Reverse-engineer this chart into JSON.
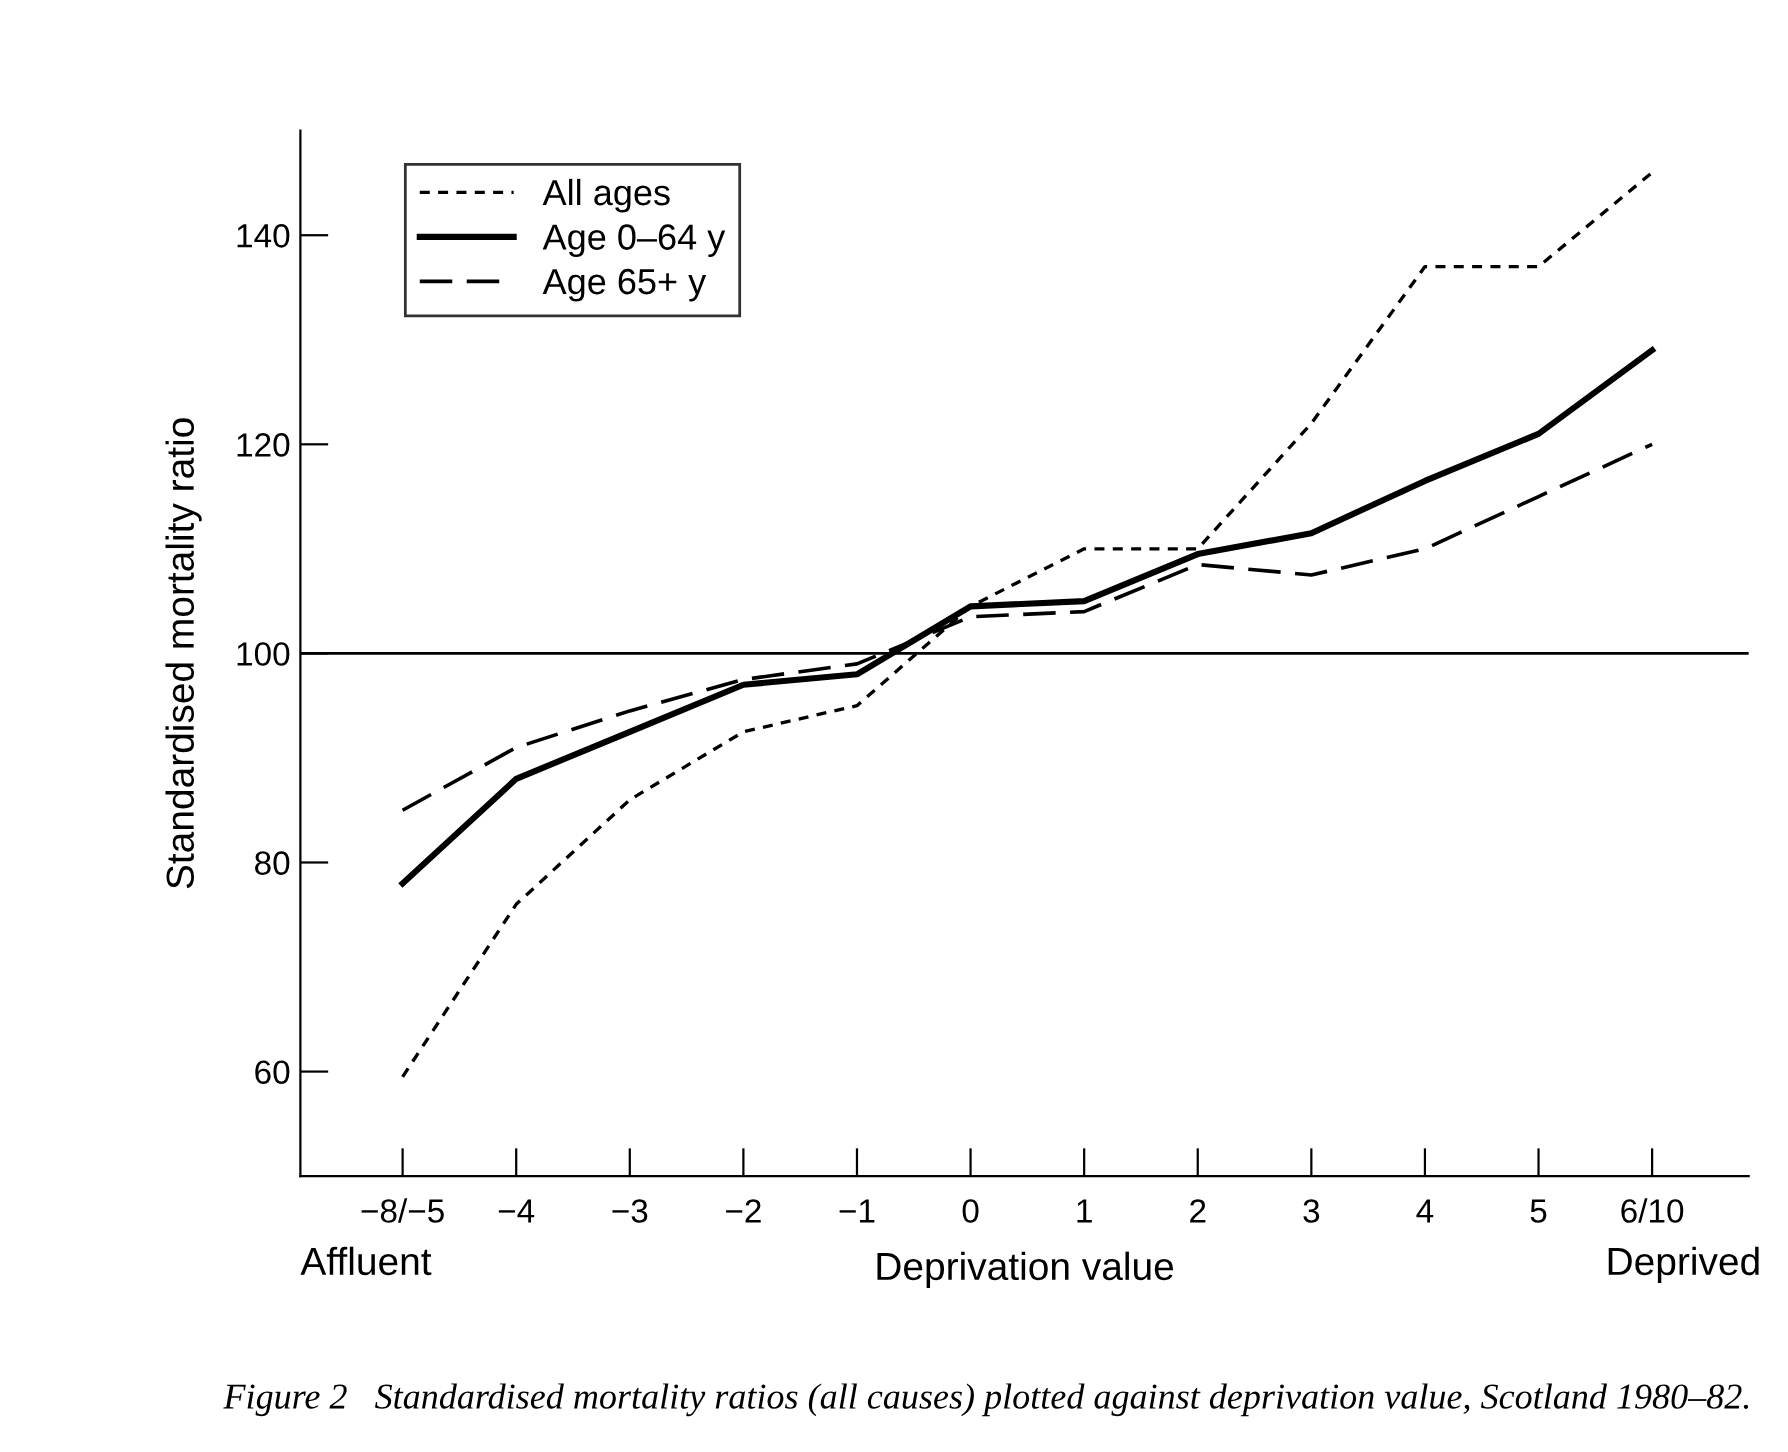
{
  "chart_data": {
    "type": "line",
    "ylabel": "Standardised mortality ratio",
    "xlabel": "Deprivation value",
    "categories": [
      "−8/−5",
      "−4",
      "−3",
      "−2",
      "−1",
      "0",
      "1",
      "2",
      "3",
      "4",
      "5",
      "6/10"
    ],
    "series": [
      {
        "name": "All ages",
        "color": "#000000",
        "line_style": "dotted",
        "values": [
          59.5,
          76,
          86,
          92.5,
          95,
          104.5,
          110,
          110,
          122,
          137,
          137,
          146
        ]
      },
      {
        "name": "Age 0–64 y",
        "color": "#000000",
        "line_style": "solid",
        "values": [
          78,
          88,
          92.5,
          97,
          98,
          104.5,
          105,
          109.5,
          111.5,
          116.5,
          121,
          129
        ]
      },
      {
        "name": "Age 65+ y",
        "color": "#000000",
        "line_style": "dashed",
        "values": [
          85,
          91,
          94.5,
          97.5,
          99,
          103.5,
          104,
          108.5,
          107.5,
          110,
          115,
          120
        ]
      }
    ],
    "ylim": [
      50,
      150
    ],
    "yticks": [
      60,
      80,
      100,
      120,
      140
    ],
    "ref_lines": [
      {
        "axis": "y",
        "value": 100,
        "color": "#000000"
      }
    ],
    "legend": "top left",
    "grid": false,
    "marker": "none",
    "annotations": [
      "Affluent",
      "Deprived",
      "Figure 2   Standardised mortality ratios (all causes) plotted against deprivation value, Scotland 1980–82."
    ]
  }
}
